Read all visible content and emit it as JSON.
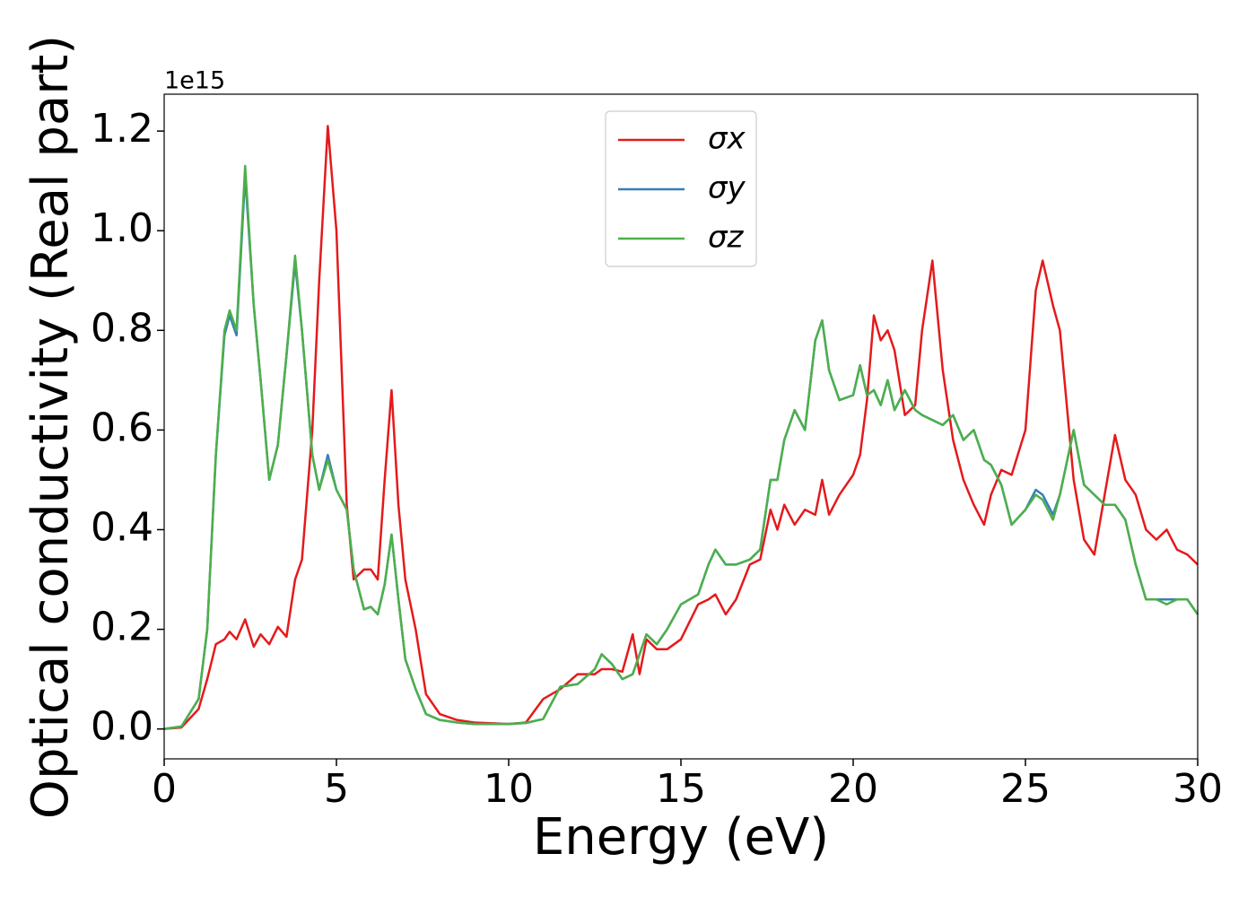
{
  "chart_data": {
    "type": "line",
    "xlabel": "Energy (eV)",
    "ylabel": "Optical conductivity (Real part)",
    "y_offset_text": "1e15",
    "x": [
      0,
      0.5,
      1,
      1.25,
      1.5,
      1.75,
      1.9,
      2.1,
      2.35,
      2.6,
      2.8,
      3.05,
      3.3,
      3.55,
      3.8,
      4.0,
      4.3,
      4.5,
      4.75,
      5.0,
      5.3,
      5.5,
      5.8,
      6.0,
      6.2,
      6.4,
      6.6,
      6.8,
      7.0,
      7.3,
      7.6,
      8,
      8.5,
      9,
      10,
      10.5,
      11,
      11.5,
      12,
      12.5,
      12.7,
      13,
      13.3,
      13.6,
      13.8,
      14,
      14.3,
      14.6,
      15,
      15.5,
      15.8,
      16,
      16.3,
      16.6,
      17,
      17.3,
      17.6,
      17.8,
      18,
      18.3,
      18.6,
      18.9,
      19.1,
      19.3,
      19.6,
      20,
      20.2,
      20.4,
      20.6,
      20.8,
      21,
      21.2,
      21.5,
      21.8,
      22,
      22.3,
      22.6,
      22.9,
      23.2,
      23.5,
      23.8,
      24,
      24.3,
      24.6,
      25,
      25.3,
      25.5,
      25.8,
      26,
      26.4,
      26.7,
      27,
      27.3,
      27.6,
      27.9,
      28.2,
      28.5,
      28.8,
      29.1,
      29.4,
      29.7,
      30
    ],
    "series": [
      {
        "name": "σx",
        "color": "#e41a1c",
        "values": [
          0,
          0.003,
          0.04,
          0.1,
          0.17,
          0.18,
          0.195,
          0.18,
          0.22,
          0.165,
          0.19,
          0.17,
          0.205,
          0.185,
          0.3,
          0.34,
          0.6,
          0.9,
          1.21,
          1.0,
          0.45,
          0.3,
          0.32,
          0.32,
          0.3,
          0.5,
          0.68,
          0.45,
          0.3,
          0.2,
          0.07,
          0.03,
          0.018,
          0.013,
          0.01,
          0.013,
          0.06,
          0.08,
          0.11,
          0.11,
          0.12,
          0.12,
          0.115,
          0.19,
          0.11,
          0.18,
          0.16,
          0.16,
          0.18,
          0.25,
          0.26,
          0.27,
          0.23,
          0.26,
          0.33,
          0.34,
          0.44,
          0.4,
          0.45,
          0.41,
          0.44,
          0.43,
          0.5,
          0.43,
          0.47,
          0.51,
          0.55,
          0.66,
          0.83,
          0.78,
          0.8,
          0.76,
          0.63,
          0.65,
          0.8,
          0.94,
          0.72,
          0.58,
          0.5,
          0.45,
          0.41,
          0.47,
          0.52,
          0.51,
          0.6,
          0.88,
          0.94,
          0.85,
          0.8,
          0.5,
          0.38,
          0.35,
          0.47,
          0.59,
          0.5,
          0.47,
          0.4,
          0.38,
          0.4,
          0.36,
          0.35,
          0.33
        ]
      },
      {
        "name": "σy",
        "color": "#377eb8",
        "values": [
          0,
          0.005,
          0.06,
          0.2,
          0.55,
          0.79,
          0.83,
          0.79,
          1.11,
          0.85,
          0.7,
          0.5,
          0.57,
          0.75,
          0.935,
          0.8,
          0.55,
          0.48,
          0.55,
          0.48,
          0.44,
          0.32,
          0.24,
          0.245,
          0.23,
          0.29,
          0.39,
          0.26,
          0.14,
          0.08,
          0.03,
          0.018,
          0.013,
          0.01,
          0.01,
          0.012,
          0.02,
          0.085,
          0.09,
          0.12,
          0.15,
          0.13,
          0.1,
          0.11,
          0.15,
          0.19,
          0.17,
          0.2,
          0.25,
          0.27,
          0.33,
          0.36,
          0.33,
          0.33,
          0.34,
          0.36,
          0.5,
          0.5,
          0.58,
          0.64,
          0.6,
          0.78,
          0.82,
          0.72,
          0.66,
          0.67,
          0.73,
          0.67,
          0.68,
          0.65,
          0.7,
          0.64,
          0.68,
          0.64,
          0.63,
          0.62,
          0.61,
          0.63,
          0.58,
          0.6,
          0.54,
          0.53,
          0.49,
          0.41,
          0.44,
          0.48,
          0.47,
          0.43,
          0.47,
          0.6,
          0.49,
          0.47,
          0.45,
          0.45,
          0.42,
          0.33,
          0.26,
          0.26,
          0.26,
          0.26,
          0.26,
          0.23
        ]
      },
      {
        "name": "σz",
        "color": "#4daf4a",
        "values": [
          0,
          0.005,
          0.06,
          0.2,
          0.55,
          0.8,
          0.84,
          0.8,
          1.13,
          0.85,
          0.7,
          0.5,
          0.57,
          0.75,
          0.95,
          0.8,
          0.55,
          0.48,
          0.54,
          0.48,
          0.44,
          0.32,
          0.24,
          0.245,
          0.23,
          0.29,
          0.39,
          0.26,
          0.14,
          0.08,
          0.03,
          0.018,
          0.013,
          0.01,
          0.01,
          0.012,
          0.02,
          0.085,
          0.09,
          0.12,
          0.15,
          0.13,
          0.1,
          0.11,
          0.15,
          0.19,
          0.17,
          0.2,
          0.25,
          0.27,
          0.33,
          0.36,
          0.33,
          0.33,
          0.34,
          0.36,
          0.5,
          0.5,
          0.58,
          0.64,
          0.6,
          0.78,
          0.82,
          0.72,
          0.66,
          0.67,
          0.73,
          0.67,
          0.68,
          0.65,
          0.7,
          0.64,
          0.68,
          0.64,
          0.63,
          0.62,
          0.61,
          0.63,
          0.58,
          0.6,
          0.54,
          0.53,
          0.49,
          0.41,
          0.44,
          0.47,
          0.46,
          0.42,
          0.47,
          0.6,
          0.49,
          0.47,
          0.45,
          0.45,
          0.42,
          0.33,
          0.26,
          0.26,
          0.25,
          0.26,
          0.26,
          0.23
        ]
      }
    ],
    "xlim": [
      0,
      30
    ],
    "xticks": [
      0,
      5,
      10,
      15,
      20,
      25,
      30
    ],
    "ylim": [
      -0.06,
      1.274
    ],
    "yticks": [
      {
        "value": 0,
        "label": "0.0"
      },
      0.2,
      0.4,
      0.6,
      0.8,
      {
        "value": 1,
        "label": "1.0"
      },
      1.2
    ],
    "legend": "upper center"
  }
}
